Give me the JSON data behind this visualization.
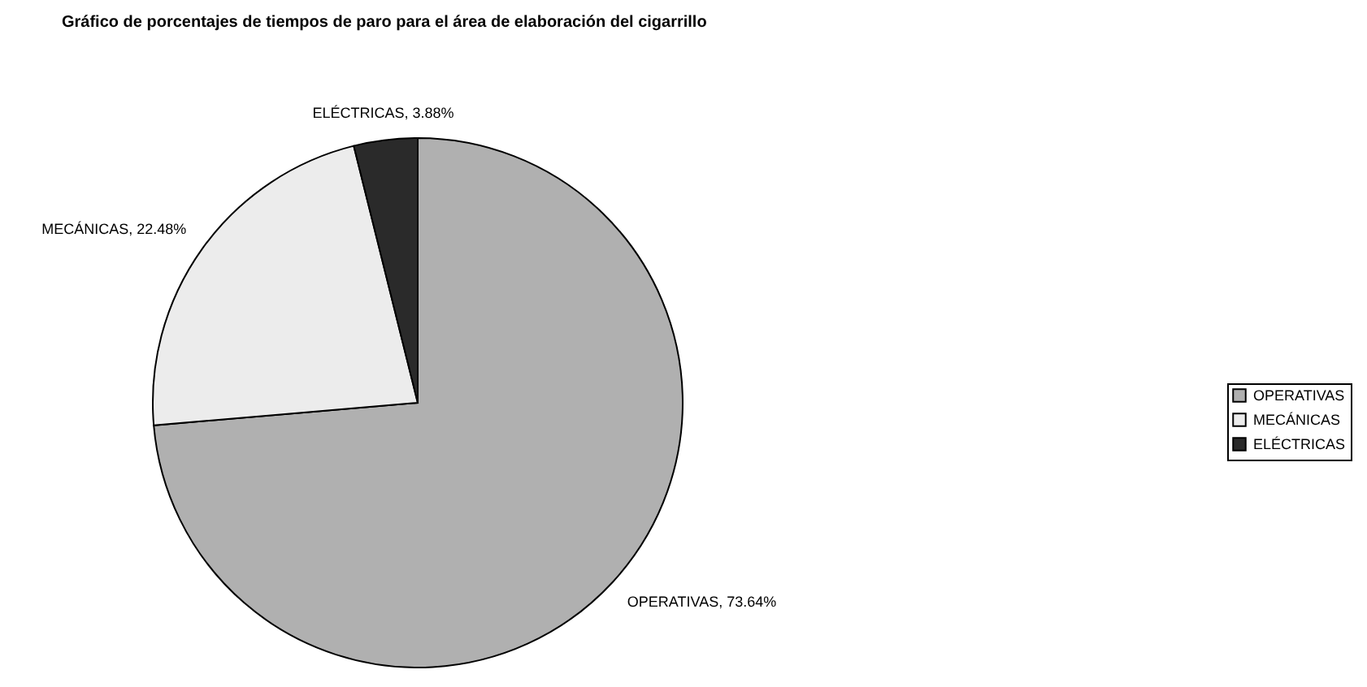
{
  "chart_data": {
    "type": "pie",
    "title": "Gráfico de porcentajes de tiempos de paro para el área de elaboración del cigarrillo",
    "categories": [
      "OPERATIVAS",
      "MECÁNICAS",
      "ELÉCTRICAS"
    ],
    "values": [
      73.64,
      22.48,
      3.88
    ],
    "colors": [
      "#b0b0b0",
      "#ececec",
      "#2a2a2a"
    ],
    "value_labels": [
      "OPERATIVAS, 73.64%",
      "MECÁNICAS, 22.48%",
      "ELÉCTRICAS, 3.88%"
    ],
    "legend": "right"
  }
}
